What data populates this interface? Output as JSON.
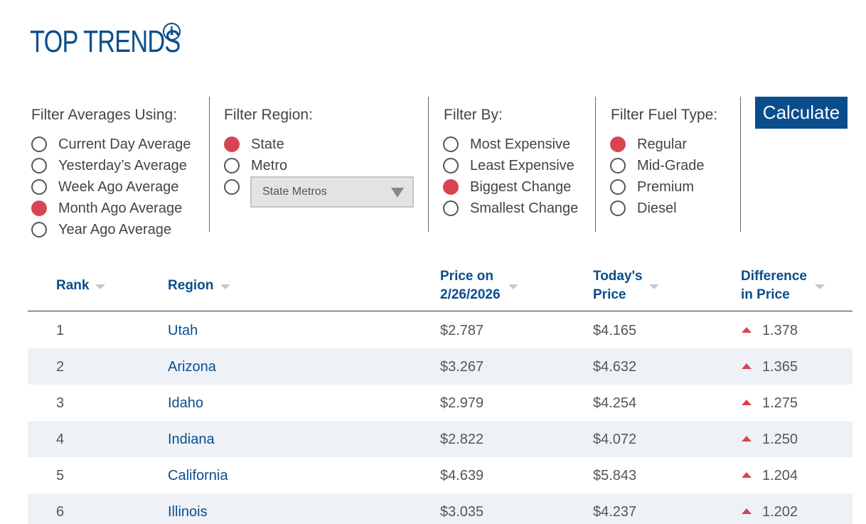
{
  "header": {
    "title": "TOP TRENDS",
    "info_icon": "info-icon"
  },
  "filters": {
    "averages": {
      "heading": "Filter Averages Using:",
      "options": [
        {
          "label": "Current Day Average",
          "selected": false
        },
        {
          "label": "Yesterday’s Average",
          "selected": false
        },
        {
          "label": "Week Ago Average",
          "selected": false
        },
        {
          "label": "Month Ago Average",
          "selected": true
        },
        {
          "label": "Year Ago Average",
          "selected": false
        }
      ]
    },
    "region": {
      "heading": "Filter Region:",
      "options": [
        {
          "label": "State",
          "selected": true
        },
        {
          "label": "Metro",
          "selected": false
        }
      ],
      "select_value": "State Metros"
    },
    "by": {
      "heading": "Filter By:",
      "options": [
        {
          "label": "Most Expensive",
          "selected": false
        },
        {
          "label": "Least Expensive",
          "selected": false
        },
        {
          "label": "Biggest Change",
          "selected": true
        },
        {
          "label": "Smallest Change",
          "selected": false
        }
      ]
    },
    "fuel": {
      "heading": "Filter Fuel Type:",
      "options": [
        {
          "label": "Regular",
          "selected": true
        },
        {
          "label": "Mid-Grade",
          "selected": false
        },
        {
          "label": "Premium",
          "selected": false
        },
        {
          "label": "Diesel",
          "selected": false
        }
      ]
    },
    "calculate_label": "Calculate"
  },
  "table": {
    "headers": {
      "rank": "Rank",
      "region": "Region",
      "price_on_1": "Price on",
      "price_on_2": "2/26/2026",
      "today_1": "Today's",
      "today_2": "Price",
      "diff_1": "Difference",
      "diff_2": "in Price"
    },
    "rows": [
      {
        "rank": "1",
        "region": "Utah",
        "price_on": "$2.787",
        "today": "$4.165",
        "diff": "1.378"
      },
      {
        "rank": "2",
        "region": "Arizona",
        "price_on": "$3.267",
        "today": "$4.632",
        "diff": "1.365"
      },
      {
        "rank": "3",
        "region": "Idaho",
        "price_on": "$2.979",
        "today": "$4.254",
        "diff": "1.275"
      },
      {
        "rank": "4",
        "region": "Indiana",
        "price_on": "$2.822",
        "today": "$4.072",
        "diff": "1.250"
      },
      {
        "rank": "5",
        "region": "California",
        "price_on": "$4.639",
        "today": "$5.843",
        "diff": "1.204"
      },
      {
        "rank": "6",
        "region": "Illinois",
        "price_on": "$3.035",
        "today": "$4.237",
        "diff": "1.202"
      }
    ]
  },
  "colors": {
    "brand": "#0a4d8c",
    "selected": "#d94452",
    "row_alt": "#eef2f7"
  }
}
